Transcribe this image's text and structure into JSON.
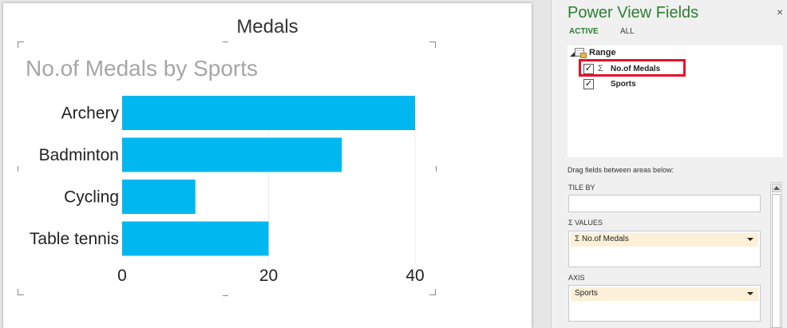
{
  "sheet": {
    "title": "Medals"
  },
  "chart_data": {
    "type": "bar",
    "orientation": "horizontal",
    "title": "No.of Medals by Sports",
    "categories": [
      "Archery",
      "Badminton",
      "Cycling",
      "Table tennis"
    ],
    "values": [
      40,
      30,
      10,
      20
    ],
    "xticks": [
      "0",
      "20",
      "40"
    ],
    "xlim": [
      0,
      40
    ],
    "grid": true,
    "legend": "none",
    "bar_color": "#00b7f0"
  },
  "panel": {
    "title": "Power View Fields",
    "tabs": {
      "active": "ACTIVE",
      "all": "ALL"
    },
    "table_name": "Range",
    "fields": [
      {
        "name": "No.of Medals",
        "checked": true,
        "sigma": "Σ",
        "check_mark": "✓"
      },
      {
        "name": "Sports",
        "checked": true,
        "sigma": "",
        "check_mark": "✓"
      }
    ],
    "drag_hint": "Drag fields between areas below:",
    "areas": {
      "tile_by": {
        "label": "TILE BY"
      },
      "values": {
        "label": "VALUES",
        "sigma": "Σ",
        "item": "No.of Medals",
        "item_sigma": "Σ"
      },
      "axis": {
        "label": "AXIS",
        "item": "Sports"
      }
    },
    "close_glyph": "×"
  },
  "colors": {
    "accent_green": "#2e7d32",
    "bar": "#00b7f0",
    "highlight_red": "#e8102a"
  }
}
